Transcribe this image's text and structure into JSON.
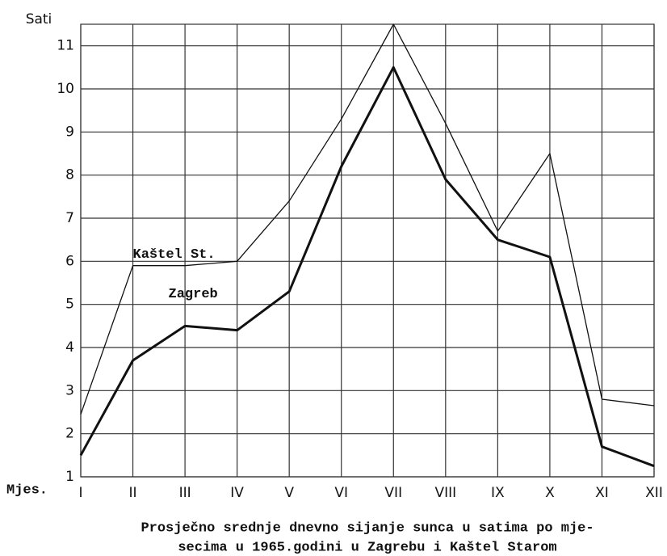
{
  "chart_data": {
    "type": "line",
    "y_label": "Sati",
    "x_label": "Mjes.",
    "categories": [
      "I",
      "II",
      "III",
      "IV",
      "V",
      "VI",
      "VII",
      "VIII",
      "IX",
      "X",
      "XI",
      "XII"
    ],
    "series": [
      {
        "name": "Kaštel St.",
        "color": "#111111",
        "line_width": 1.3,
        "values": [
          2.45,
          5.9,
          5.9,
          6.0,
          7.4,
          9.3,
          11.5,
          9.2,
          6.7,
          8.5,
          2.8,
          2.65
        ]
      },
      {
        "name": "Zagreb",
        "color": "#111111",
        "line_width": 3,
        "values": [
          1.5,
          3.7,
          4.5,
          4.4,
          5.3,
          8.2,
          10.5,
          7.9,
          6.5,
          6.1,
          1.7,
          1.25
        ]
      }
    ],
    "ylim": [
      1,
      11.5
    ],
    "yticks": [
      1,
      2,
      3,
      4,
      5,
      6,
      7,
      8,
      9,
      10,
      11
    ],
    "grid": true,
    "caption": [
      "Prosječno srednje dnevno sijanje sunca u satima po mje-",
      "secima u 1965.godini u Zagrebu i Kaštel Starom"
    ]
  }
}
